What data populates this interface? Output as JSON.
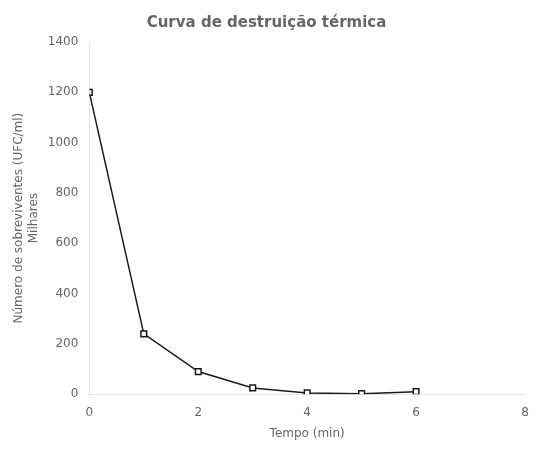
{
  "chart_data": {
    "type": "line",
    "title": "Curva de destruição térmica",
    "xlabel": "Tempo (min)",
    "ylabel": "Número de sobreviventes (UFC/ml)",
    "annotations": [
      "Milhares"
    ],
    "x": [
      0,
      1,
      2,
      3,
      4,
      5,
      6
    ],
    "values": [
      1200,
      240,
      90,
      25,
      5,
      2,
      10
    ],
    "xlim": [
      0,
      8
    ],
    "ylim": [
      0,
      1400
    ],
    "xticks": [
      0,
      2,
      4,
      6,
      8
    ],
    "yticks": [
      0,
      200,
      400,
      600,
      800,
      1000,
      1200,
      1400
    ],
    "color": "#1a1a1a",
    "marker": "square",
    "grid": false
  }
}
